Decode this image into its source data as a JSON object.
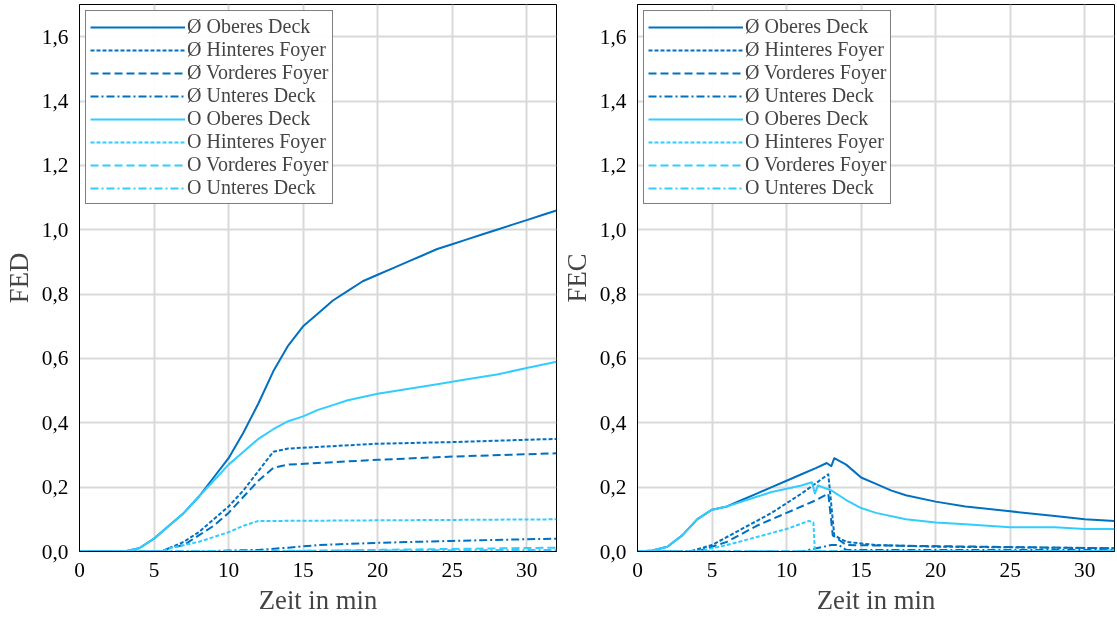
{
  "chart_data": [
    {
      "type": "line",
      "xlabel": "Zeit in min",
      "ylabel": "FED",
      "xlim": [
        0,
        32
      ],
      "ylim": [
        0,
        1.7
      ],
      "xticks": [
        0,
        5,
        10,
        15,
        20,
        25,
        30
      ],
      "yticks": [
        {
          "value": 0,
          "label": "0,0"
        },
        {
          "value": 0.2,
          "label": "0,2"
        },
        {
          "value": 0.4,
          "label": "0,4"
        },
        {
          "value": 0.6,
          "label": "0,6"
        },
        {
          "value": 0.8,
          "label": "0,8"
        },
        {
          "value": 1.0,
          "label": "1,0"
        },
        {
          "value": 1.2,
          "label": "1,2"
        },
        {
          "value": 1.4,
          "label": "1,4"
        },
        {
          "value": 1.6,
          "label": "1,6"
        }
      ],
      "grid": true,
      "legend": "top left",
      "marker": "none",
      "series": [
        {
          "name": "Ø Oberes Deck",
          "color": "#0070c0",
          "line_style": "solid",
          "x": [
            0,
            3,
            4,
            5,
            6,
            7,
            8,
            9,
            10,
            11,
            12,
            13,
            14,
            15,
            16,
            17,
            18,
            19,
            20,
            21,
            22,
            23,
            24,
            25,
            26,
            27,
            28,
            29,
            30,
            31,
            32
          ],
          "values": [
            0,
            0,
            0.01,
            0.04,
            0.08,
            0.12,
            0.17,
            0.23,
            0.29,
            0.37,
            0.46,
            0.56,
            0.64,
            0.7,
            0.74,
            0.78,
            0.81,
            0.84,
            0.86,
            0.88,
            0.9,
            0.92,
            0.94,
            0.955,
            0.97,
            0.985,
            1.0,
            1.015,
            1.03,
            1.045,
            1.06
          ]
        },
        {
          "name": "Ø Hinteres Foyer",
          "color": "#0070c0",
          "line_style": "dotted",
          "x": [
            0,
            5.5,
            6,
            7,
            8,
            9,
            10,
            11,
            12,
            13,
            14,
            16,
            20,
            25,
            32
          ],
          "values": [
            0,
            0,
            0.01,
            0.03,
            0.06,
            0.1,
            0.14,
            0.19,
            0.25,
            0.31,
            0.32,
            0.325,
            0.335,
            0.34,
            0.35
          ]
        },
        {
          "name": "Ø Vorderes Foyer",
          "color": "#0070c0",
          "line_style": "dashed",
          "x": [
            0,
            5.5,
            6,
            7,
            8,
            9,
            10,
            11,
            12,
            13,
            14,
            16,
            20,
            25,
            32
          ],
          "values": [
            0,
            0,
            0.01,
            0.02,
            0.05,
            0.08,
            0.12,
            0.17,
            0.22,
            0.26,
            0.27,
            0.275,
            0.285,
            0.295,
            0.305
          ]
        },
        {
          "name": "Ø Unteres Deck",
          "color": "#0070c0",
          "line_style": "dashdot",
          "x": [
            0,
            8,
            10,
            12,
            14,
            16,
            20,
            25,
            32
          ],
          "values": [
            0,
            0,
            0.003,
            0.005,
            0.012,
            0.02,
            0.027,
            0.033,
            0.04
          ]
        },
        {
          "name": "O Oberes Deck",
          "color": "#33ccff",
          "line_style": "solid",
          "x": [
            0,
            3,
            4,
            5,
            6,
            7,
            8,
            9,
            10,
            11,
            12,
            13,
            14,
            15,
            16,
            17,
            18,
            19,
            20,
            22,
            24,
            26,
            28,
            30,
            32
          ],
          "values": [
            0,
            0,
            0.01,
            0.04,
            0.08,
            0.12,
            0.17,
            0.22,
            0.27,
            0.31,
            0.35,
            0.38,
            0.405,
            0.42,
            0.44,
            0.455,
            0.47,
            0.48,
            0.49,
            0.505,
            0.52,
            0.535,
            0.55,
            0.57,
            0.59
          ]
        },
        {
          "name": "O Hinteres Foyer",
          "color": "#33ccff",
          "line_style": "dotted",
          "x": [
            0,
            5.5,
            6,
            8,
            10,
            11,
            12,
            13,
            32
          ],
          "values": [
            0,
            0,
            0.01,
            0.03,
            0.06,
            0.08,
            0.095,
            0.095,
            0.1
          ]
        },
        {
          "name": "O Vorderes Foyer",
          "color": "#33ccff",
          "line_style": "dashed",
          "x": [
            0,
            12,
            20,
            32
          ],
          "values": [
            0,
            0,
            0.005,
            0.012
          ]
        },
        {
          "name": "O Unteres Deck",
          "color": "#33ccff",
          "line_style": "dashdot",
          "x": [
            0,
            32
          ],
          "values": [
            0,
            0.005
          ]
        }
      ]
    },
    {
      "type": "line",
      "xlabel": "Zeit in min",
      "ylabel": "FEC",
      "xlim": [
        0,
        32
      ],
      "ylim": [
        0,
        1.7
      ],
      "xticks": [
        0,
        5,
        10,
        15,
        20,
        25,
        30
      ],
      "yticks": [
        {
          "value": 0,
          "label": "0,0"
        },
        {
          "value": 0.2,
          "label": "0,2"
        },
        {
          "value": 0.4,
          "label": "0,4"
        },
        {
          "value": 0.6,
          "label": "0,6"
        },
        {
          "value": 0.8,
          "label": "0,8"
        },
        {
          "value": 1.0,
          "label": "1,0"
        },
        {
          "value": 1.2,
          "label": "1,2"
        },
        {
          "value": 1.4,
          "label": "1,4"
        },
        {
          "value": 1.6,
          "label": "1,6"
        }
      ],
      "grid": true,
      "legend": "top left",
      "marker": "none",
      "series": [
        {
          "name": "Ø Oberes Deck",
          "color": "#0070c0",
          "line_style": "solid",
          "x": [
            0,
            1,
            2,
            3,
            4,
            5,
            6,
            7,
            8,
            9,
            10,
            11,
            12,
            12.7,
            13,
            13.2,
            14,
            15,
            16,
            17,
            18,
            20,
            22,
            25,
            28,
            30,
            32
          ],
          "values": [
            0,
            0.003,
            0.015,
            0.05,
            0.1,
            0.13,
            0.14,
            0.16,
            0.18,
            0.2,
            0.22,
            0.24,
            0.26,
            0.275,
            0.265,
            0.29,
            0.27,
            0.23,
            0.21,
            0.19,
            0.175,
            0.155,
            0.14,
            0.125,
            0.11,
            0.1,
            0.095
          ]
        },
        {
          "name": "Ø Hinteres Foyer",
          "color": "#0070c0",
          "line_style": "dotted",
          "x": [
            0,
            3.5,
            5,
            7,
            9,
            11,
            12.8,
            13.2,
            14,
            16,
            20,
            32
          ],
          "values": [
            0,
            0,
            0.02,
            0.07,
            0.12,
            0.18,
            0.24,
            0.05,
            0.03,
            0.02,
            0.015,
            0.01
          ]
        },
        {
          "name": "Ø Vorderes Foyer",
          "color": "#0070c0",
          "line_style": "dashed",
          "x": [
            0,
            4,
            6,
            8,
            10,
            12,
            12.8,
            13.1,
            14,
            32
          ],
          "values": [
            0,
            0,
            0.03,
            0.08,
            0.12,
            0.16,
            0.18,
            0.05,
            0.02,
            0.01
          ]
        },
        {
          "name": "Ø Unteres Deck",
          "color": "#0070c0",
          "line_style": "dashdot",
          "x": [
            0,
            11,
            12,
            13,
            13.5,
            14,
            32
          ],
          "values": [
            0,
            0,
            0.01,
            0.02,
            0.02,
            0.005,
            0.005
          ]
        },
        {
          "name": "O Oberes Deck",
          "color": "#33ccff",
          "line_style": "solid",
          "x": [
            0,
            1,
            2,
            3,
            4,
            5,
            6,
            7,
            8,
            9,
            10,
            11,
            11.7,
            11.9,
            12.1,
            13,
            14,
            15,
            16,
            18,
            20,
            22,
            25,
            28,
            30,
            32
          ],
          "values": [
            0,
            0.003,
            0.015,
            0.05,
            0.1,
            0.13,
            0.14,
            0.155,
            0.17,
            0.185,
            0.195,
            0.205,
            0.215,
            0.18,
            0.205,
            0.19,
            0.16,
            0.135,
            0.12,
            0.1,
            0.09,
            0.085,
            0.075,
            0.075,
            0.07,
            0.07
          ]
        },
        {
          "name": "O Hinteres Foyer",
          "color": "#33ccff",
          "line_style": "dotted",
          "x": [
            0,
            4,
            6,
            8,
            10,
            11.5,
            11.8,
            11.9,
            32
          ],
          "values": [
            0,
            0,
            0.02,
            0.045,
            0.07,
            0.095,
            0.09,
            0,
            0
          ]
        },
        {
          "name": "O Vorderes Foyer",
          "color": "#33ccff",
          "line_style": "dashed",
          "x": [
            0,
            32
          ],
          "values": [
            0,
            0.002
          ]
        },
        {
          "name": "O Unteres Deck",
          "color": "#33ccff",
          "line_style": "dashdot",
          "x": [
            0,
            32
          ],
          "values": [
            0,
            0.002
          ]
        }
      ]
    }
  ]
}
